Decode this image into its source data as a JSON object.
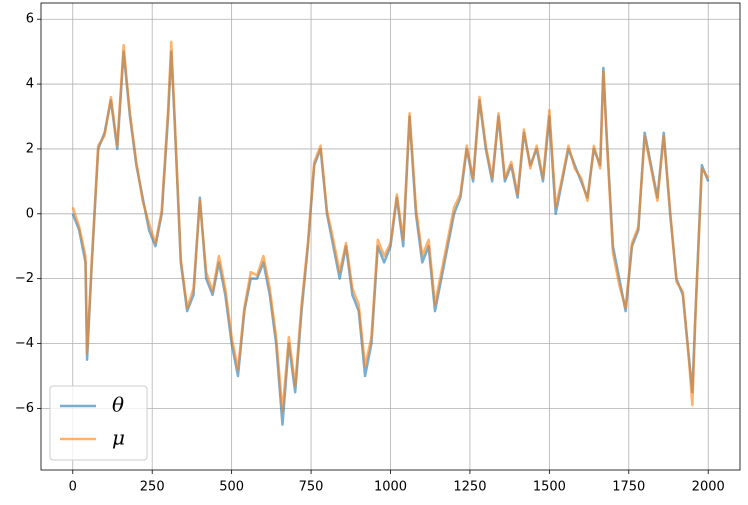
{
  "chart_data": {
    "type": "line",
    "x": [
      0,
      20,
      40,
      45,
      60,
      80,
      100,
      120,
      140,
      160,
      170,
      180,
      200,
      220,
      240,
      260,
      280,
      300,
      310,
      320,
      340,
      360,
      380,
      400,
      420,
      440,
      460,
      480,
      500,
      520,
      540,
      560,
      580,
      600,
      620,
      640,
      660,
      680,
      700,
      720,
      740,
      760,
      780,
      800,
      820,
      840,
      860,
      880,
      900,
      920,
      940,
      960,
      980,
      1000,
      1020,
      1040,
      1060,
      1080,
      1100,
      1120,
      1140,
      1160,
      1180,
      1200,
      1220,
      1240,
      1260,
      1280,
      1300,
      1320,
      1340,
      1360,
      1380,
      1400,
      1420,
      1440,
      1460,
      1480,
      1500,
      1520,
      1540,
      1560,
      1580,
      1600,
      1620,
      1640,
      1660,
      1670,
      1680,
      1700,
      1720,
      1740,
      1760,
      1780,
      1800,
      1820,
      1840,
      1860,
      1880,
      1900,
      1920,
      1940,
      1950,
      1960,
      1980,
      2000
    ],
    "series": [
      {
        "name": "θ",
        "color": "#1f77b4",
        "values": [
          0,
          -0.5,
          -1.5,
          -4.5,
          -1.5,
          2,
          2.5,
          3.5,
          2,
          5,
          4,
          3,
          1.5,
          0.5,
          -0.5,
          -1,
          0,
          3,
          5,
          3,
          -1.5,
          -3,
          -2.5,
          0.5,
          -2,
          -2.5,
          -1.5,
          -2.5,
          -4,
          -5,
          -3,
          -2,
          -2,
          -1.5,
          -2.5,
          -4,
          -6.5,
          -4,
          -5.5,
          -3,
          -1,
          1.5,
          2,
          0,
          -1,
          -2,
          -1,
          -2.5,
          -3,
          -5,
          -4,
          -1,
          -1.5,
          -1,
          0.5,
          -1,
          3,
          0,
          -1.5,
          -1,
          -3,
          -2,
          -1,
          0,
          0.5,
          2,
          1,
          3.5,
          2,
          1,
          3,
          1,
          1.5,
          0.5,
          2.5,
          1.5,
          2,
          1,
          3,
          0,
          1,
          2,
          1.5,
          1,
          0.5,
          2,
          1.5,
          4.5,
          2.5,
          -1,
          -2,
          -3,
          -1,
          -0.5,
          2.5,
          1.5,
          0.5,
          2.5,
          0,
          -2,
          -2.5,
          -4.5,
          -5.5,
          -3,
          1.5,
          1
        ]
      },
      {
        "name": "μ",
        "color": "#ff7f0e",
        "values": [
          0.2,
          -0.4,
          -1.3,
          -4.3,
          -1.4,
          2.1,
          2.4,
          3.6,
          2.1,
          5.2,
          4.1,
          3.1,
          1.6,
          0.4,
          -0.3,
          -0.9,
          0.1,
          3.2,
          5.3,
          3.1,
          -1.4,
          -2.9,
          -2.3,
          0.4,
          -1.8,
          -2.4,
          -1.3,
          -2.3,
          -3.8,
          -4.8,
          -2.9,
          -1.8,
          -1.9,
          -1.3,
          -2.3,
          -3.8,
          -6.1,
          -3.8,
          -5.3,
          -2.8,
          -0.9,
          1.6,
          2.1,
          0.1,
          -0.8,
          -1.8,
          -0.9,
          -2.3,
          -2.8,
          -4.7,
          -3.8,
          -0.8,
          -1.3,
          -0.9,
          0.6,
          -0.8,
          3.1,
          0.2,
          -1.3,
          -0.8,
          -2.8,
          -1.8,
          -0.8,
          0.2,
          0.6,
          2.1,
          1.1,
          3.6,
          2.1,
          1.1,
          3.1,
          1.1,
          1.6,
          0.6,
          2.6,
          1.4,
          2.1,
          1.1,
          3.2,
          0.2,
          1.1,
          2.1,
          1.4,
          1.1,
          0.4,
          2.1,
          1.4,
          4.4,
          2.4,
          -1.2,
          -2.2,
          -2.9,
          -0.9,
          -0.4,
          2.4,
          1.4,
          0.4,
          2.4,
          0.1,
          -2.1,
          -2.4,
          -4.6,
          -5.9,
          -3.1,
          1.4,
          1.1
        ]
      }
    ],
    "xlim": [
      -100,
      2100
    ],
    "ylim": [
      -7.9,
      6.5
    ],
    "xticks": [
      0,
      250,
      500,
      750,
      1000,
      1250,
      1500,
      1750,
      2000
    ],
    "yticks": [
      {
        "value": -6,
        "label": "−6"
      },
      {
        "value": -4,
        "label": "−4"
      },
      {
        "value": -2,
        "label": "−2"
      },
      0,
      2,
      4,
      6
    ],
    "grid": true,
    "legend": "lower left"
  }
}
